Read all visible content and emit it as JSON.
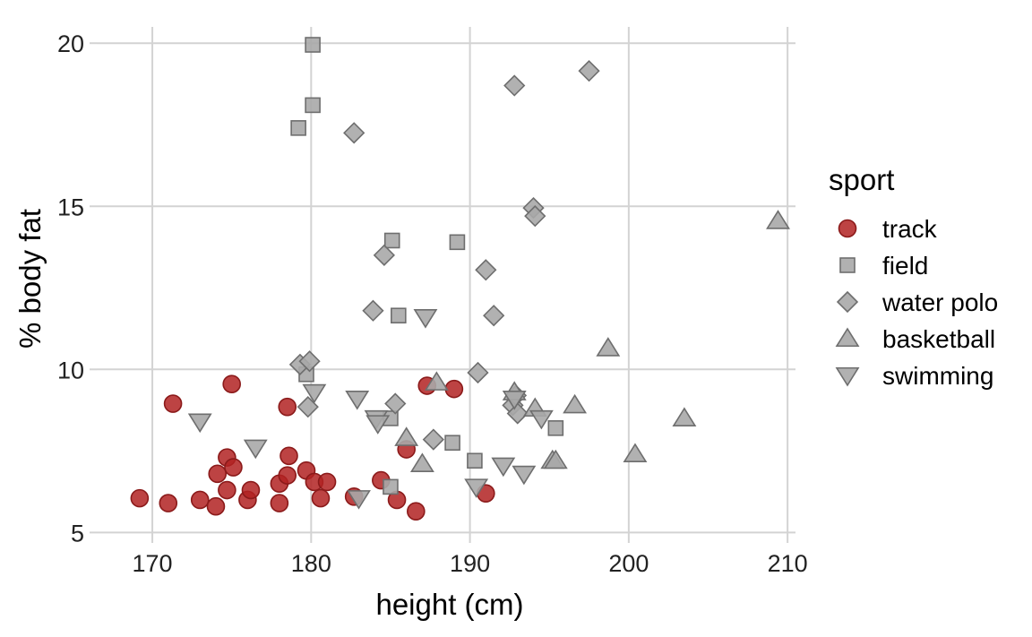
{
  "chart_data": {
    "type": "scatter",
    "title": "",
    "xlabel": "height (cm)",
    "ylabel": "% body fat",
    "xlim": [
      166.5,
      210.5
    ],
    "ylim": [
      4.9,
      20.5
    ],
    "xticks": [
      170,
      180,
      190,
      200,
      210
    ],
    "yticks": [
      5,
      10,
      15,
      20
    ],
    "grid": true,
    "legend": {
      "title": "sport",
      "position": "right",
      "entries": [
        {
          "name": "track",
          "shape": "circle",
          "color": "#b22222"
        },
        {
          "name": "field",
          "shape": "square",
          "color": "#a9a9a9"
        },
        {
          "name": "water polo",
          "shape": "diamond",
          "color": "#a9a9a9"
        },
        {
          "name": "basketball",
          "shape": "triangle-up",
          "color": "#a9a9a9"
        },
        {
          "name": "swimming",
          "shape": "triangle-down",
          "color": "#a9a9a9"
        }
      ]
    },
    "series": [
      {
        "name": "track",
        "points": [
          [
            169.2,
            6.05
          ],
          [
            171.0,
            5.9
          ],
          [
            171.3,
            8.95
          ],
          [
            173.0,
            6.0
          ],
          [
            174.0,
            5.8
          ],
          [
            174.1,
            6.8
          ],
          [
            174.7,
            6.3
          ],
          [
            174.7,
            7.3
          ],
          [
            175.1,
            7.0
          ],
          [
            175.0,
            9.55
          ],
          [
            176.0,
            6.0
          ],
          [
            176.2,
            6.3
          ],
          [
            178.0,
            5.9
          ],
          [
            178.0,
            6.5
          ],
          [
            178.5,
            6.75
          ],
          [
            178.6,
            7.35
          ],
          [
            178.5,
            8.85
          ],
          [
            179.7,
            6.9
          ],
          [
            180.2,
            6.55
          ],
          [
            180.6,
            6.05
          ],
          [
            181.0,
            6.55
          ],
          [
            182.7,
            6.1
          ],
          [
            184.4,
            6.6
          ],
          [
            185.4,
            6.0
          ],
          [
            186.0,
            7.55
          ],
          [
            186.6,
            5.65
          ],
          [
            187.3,
            9.5
          ],
          [
            189.0,
            9.4
          ],
          [
            191.0,
            6.2
          ]
        ]
      },
      {
        "name": "field",
        "points": [
          [
            180.1,
            19.95
          ],
          [
            180.1,
            18.1
          ],
          [
            179.2,
            17.4
          ],
          [
            185.1,
            13.95
          ],
          [
            189.2,
            13.9
          ],
          [
            185.5,
            11.65
          ],
          [
            179.7,
            9.85
          ],
          [
            185.0,
            8.5
          ],
          [
            188.9,
            7.75
          ],
          [
            190.3,
            7.2
          ],
          [
            195.4,
            8.2
          ],
          [
            185.0,
            6.4
          ]
        ]
      },
      {
        "name": "water polo",
        "points": [
          [
            197.5,
            19.15
          ],
          [
            192.8,
            18.7
          ],
          [
            182.7,
            17.25
          ],
          [
            194.0,
            14.95
          ],
          [
            194.1,
            14.7
          ],
          [
            184.6,
            13.5
          ],
          [
            191.0,
            13.05
          ],
          [
            183.9,
            11.8
          ],
          [
            191.5,
            11.65
          ],
          [
            179.3,
            10.15
          ],
          [
            179.9,
            10.25
          ],
          [
            190.5,
            9.9
          ],
          [
            179.8,
            8.85
          ],
          [
            185.3,
            8.95
          ],
          [
            192.7,
            8.9
          ],
          [
            193.0,
            8.65
          ],
          [
            187.7,
            7.85
          ],
          [
            192.9,
            9.2
          ]
        ]
      },
      {
        "name": "basketball",
        "points": [
          [
            209.4,
            14.55
          ],
          [
            198.7,
            10.65
          ],
          [
            187.9,
            9.6
          ],
          [
            192.8,
            9.3
          ],
          [
            194.1,
            8.8
          ],
          [
            196.6,
            8.9
          ],
          [
            203.5,
            8.5
          ],
          [
            186.0,
            7.9
          ],
          [
            187.0,
            7.1
          ],
          [
            195.2,
            7.2
          ],
          [
            195.4,
            7.2
          ],
          [
            200.4,
            7.4
          ]
        ]
      },
      {
        "name": "swimming",
        "points": [
          [
            187.2,
            11.6
          ],
          [
            180.2,
            9.3
          ],
          [
            182.9,
            9.1
          ],
          [
            184.1,
            8.5
          ],
          [
            184.2,
            8.35
          ],
          [
            173.0,
            8.4
          ],
          [
            176.5,
            7.6
          ],
          [
            192.8,
            9.1
          ],
          [
            194.5,
            8.5
          ],
          [
            192.1,
            7.05
          ],
          [
            193.4,
            6.8
          ],
          [
            190.4,
            6.4
          ],
          [
            183.0,
            6.05
          ]
        ]
      }
    ]
  }
}
